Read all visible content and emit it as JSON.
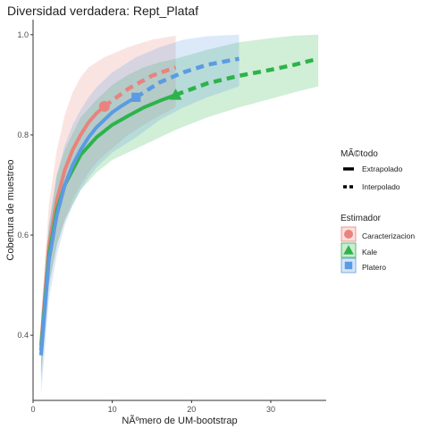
{
  "chart_data": {
    "type": "line",
    "title": "Diversidad verdadera: Rept_Plataf",
    "xlabel": "NÃºmero de UM-bootstrap",
    "ylabel": "Cobertura de muestreo",
    "xlim": [
      0,
      37
    ],
    "ylim": [
      0.27,
      1.03
    ],
    "x_ticks": [
      0,
      10,
      20,
      30
    ],
    "y_ticks": [
      0.4,
      0.6,
      0.8,
      1.0
    ],
    "y_tick_labels": [
      "0.4",
      "0.6",
      "0.8",
      "1.0"
    ],
    "grid": false,
    "legend_position": "right",
    "legend_method": {
      "title": "MÃ©todo",
      "items": [
        {
          "label": "Extrapolado",
          "style": "solid"
        },
        {
          "label": "Interpolado",
          "style": "dashed"
        }
      ]
    },
    "legend_estimator": {
      "title": "Estimador",
      "items": [
        {
          "label": "Caracterizacion",
          "marker": "circle"
        },
        {
          "label": "Kale",
          "marker": "triangle"
        },
        {
          "label": "Platero",
          "marker": "square"
        }
      ]
    },
    "series": [
      {
        "name": "Caracterizacion",
        "color": "#E8837D",
        "marker": "circle",
        "observed": {
          "x": 9,
          "y": 0.857
        },
        "solid": {
          "x": [
            1,
            2,
            3,
            4,
            5,
            6,
            7,
            8,
            9
          ],
          "y": [
            0.38,
            0.58,
            0.67,
            0.73,
            0.77,
            0.8,
            0.825,
            0.843,
            0.857
          ]
        },
        "dashed": {
          "x": [
            9,
            12,
            15,
            18
          ],
          "y": [
            0.857,
            0.892,
            0.918,
            0.935
          ]
        },
        "upper": {
          "x": [
            1,
            2,
            3,
            4,
            5,
            6,
            7,
            8,
            9,
            12,
            15,
            18
          ],
          "y": [
            0.44,
            0.66,
            0.77,
            0.84,
            0.885,
            0.915,
            0.935,
            0.945,
            0.955,
            0.975,
            0.99,
            0.998
          ]
        },
        "lower": {
          "x": [
            1,
            2,
            3,
            4,
            5,
            6,
            7,
            8,
            9,
            12,
            15,
            18
          ],
          "y": [
            0.32,
            0.5,
            0.58,
            0.63,
            0.67,
            0.7,
            0.725,
            0.745,
            0.76,
            0.8,
            0.83,
            0.855
          ]
        }
      },
      {
        "name": "Kale",
        "color": "#2DB34A",
        "marker": "triangle",
        "observed": {
          "x": 18,
          "y": 0.88
        },
        "solid": {
          "x": [
            1,
            2,
            3,
            4,
            6,
            8,
            10,
            12,
            14,
            16,
            18
          ],
          "y": [
            0.37,
            0.56,
            0.65,
            0.7,
            0.76,
            0.795,
            0.82,
            0.838,
            0.855,
            0.868,
            0.88
          ]
        },
        "dashed": {
          "x": [
            18,
            22,
            26,
            30,
            33,
            36
          ],
          "y": [
            0.88,
            0.903,
            0.918,
            0.93,
            0.94,
            0.952
          ]
        },
        "upper": {
          "x": [
            1,
            2,
            3,
            4,
            6,
            8,
            10,
            12,
            14,
            16,
            18,
            22,
            26,
            30,
            33,
            36
          ],
          "y": [
            0.42,
            0.62,
            0.72,
            0.77,
            0.835,
            0.87,
            0.9,
            0.92,
            0.935,
            0.945,
            0.952,
            0.97,
            0.985,
            0.993,
            0.998,
            1.0
          ]
        },
        "lower": {
          "x": [
            1,
            2,
            3,
            4,
            6,
            8,
            10,
            12,
            14,
            16,
            18,
            22,
            26,
            30,
            33,
            36
          ],
          "y": [
            0.31,
            0.5,
            0.58,
            0.63,
            0.69,
            0.725,
            0.75,
            0.765,
            0.78,
            0.795,
            0.81,
            0.835,
            0.855,
            0.872,
            0.885,
            0.897
          ]
        }
      },
      {
        "name": "Platero",
        "color": "#5B9BE3",
        "marker": "square",
        "observed": {
          "x": 13,
          "y": 0.875
        },
        "solid": {
          "x": [
            1,
            2,
            3,
            4,
            5,
            6,
            7,
            8,
            9,
            10,
            11,
            12,
            13
          ],
          "y": [
            0.36,
            0.55,
            0.64,
            0.7,
            0.74,
            0.77,
            0.795,
            0.815,
            0.83,
            0.845,
            0.856,
            0.866,
            0.875
          ]
        },
        "dashed": {
          "x": [
            13,
            16,
            19,
            22,
            26
          ],
          "y": [
            0.875,
            0.905,
            0.925,
            0.94,
            0.952
          ]
        },
        "upper": {
          "x": [
            1,
            2,
            3,
            4,
            5,
            6,
            7,
            8,
            9,
            10,
            11,
            12,
            13,
            16,
            19,
            22,
            26
          ],
          "y": [
            0.42,
            0.62,
            0.72,
            0.78,
            0.82,
            0.85,
            0.875,
            0.895,
            0.91,
            0.925,
            0.935,
            0.945,
            0.955,
            0.975,
            0.99,
            0.997,
            1.0
          ]
        },
        "lower": {
          "x": [
            1,
            2,
            3,
            4,
            5,
            6,
            7,
            8,
            9,
            10,
            11,
            12,
            13,
            16,
            19,
            22,
            26
          ],
          "y": [
            0.28,
            0.47,
            0.56,
            0.62,
            0.66,
            0.69,
            0.715,
            0.735,
            0.75,
            0.765,
            0.775,
            0.785,
            0.795,
            0.83,
            0.855,
            0.875,
            0.897
          ]
        }
      }
    ]
  }
}
